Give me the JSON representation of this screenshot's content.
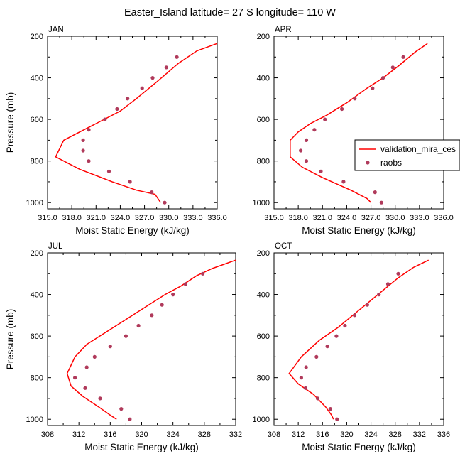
{
  "title": "Easter_Island  latitude= 27 S longitude= 110 W",
  "colors": {
    "model": "#ff0000",
    "obs": "#b03a5b"
  },
  "legend": {
    "items": [
      "validation_mira_ces",
      "raobs"
    ],
    "placement": "right, beside APR panel"
  },
  "chart_data": [
    {
      "type": "line",
      "panel": "JAN",
      "xlabel": "Moist Static Energy (kJ/kg)",
      "ylabel": "Pressure (mb)",
      "xlim": [
        315,
        336
      ],
      "ylim": [
        1030,
        200
      ],
      "xticks": [
        "315.0",
        "318.0",
        "321.0",
        "324.0",
        "327.0",
        "330.0",
        "333.0",
        "336.0"
      ],
      "yticks": [
        "200",
        "400",
        "600",
        "800",
        "1000"
      ],
      "series": [
        {
          "name": "validation_mira_ces",
          "style": "line",
          "x": [
            336.0,
            333.5,
            331.2,
            328.5,
            326.0,
            324.0,
            321.0,
            318.5,
            317.0,
            316.0,
            319.0,
            323.0,
            326.0,
            328.3,
            329.0
          ],
          "y": [
            235,
            270,
            330,
            420,
            500,
            560,
            620,
            670,
            700,
            780,
            840,
            900,
            940,
            960,
            1000
          ]
        },
        {
          "name": "raobs",
          "style": "markers",
          "x": [
            331.0,
            329.7,
            328.0,
            326.7,
            324.9,
            323.6,
            322.1,
            320.1,
            319.4,
            319.4,
            320.1,
            322.6,
            325.2,
            327.9,
            329.5
          ],
          "y": [
            300,
            350,
            400,
            450,
            500,
            550,
            600,
            650,
            700,
            750,
            800,
            850,
            900,
            950,
            1000
          ]
        }
      ]
    },
    {
      "type": "line",
      "panel": "APR",
      "xlabel": "Moist Static Energy (kJ/kg)",
      "ylabel": "",
      "xlim": [
        315,
        336
      ],
      "ylim": [
        1030,
        200
      ],
      "xticks": [
        "315.0",
        "318.0",
        "321.0",
        "324.0",
        "327.0",
        "330.0",
        "333.0",
        "336.0"
      ],
      "yticks": [
        "200",
        "400",
        "600",
        "800",
        "1000"
      ],
      "series": [
        {
          "name": "validation_mira_ces",
          "style": "line",
          "x": [
            334.0,
            332.5,
            330.5,
            328.5,
            326.5,
            324.0,
            321.5,
            319.5,
            318.0,
            317.0,
            317.0,
            318.5,
            321.0,
            324.5,
            326.5,
            327.0
          ],
          "y": [
            235,
            275,
            340,
            400,
            450,
            520,
            580,
            620,
            660,
            700,
            780,
            830,
            880,
            940,
            980,
            1000
          ]
        },
        {
          "name": "raobs",
          "style": "markers",
          "x": [
            331.0,
            329.7,
            328.5,
            327.2,
            325.0,
            323.4,
            321.3,
            320.0,
            319.0,
            318.3,
            319.0,
            320.8,
            323.6,
            327.5,
            328.3
          ],
          "y": [
            300,
            350,
            400,
            450,
            500,
            550,
            600,
            650,
            700,
            750,
            800,
            850,
            900,
            950,
            1000
          ]
        }
      ]
    },
    {
      "type": "line",
      "panel": "JUL",
      "xlabel": "Moist Static Energy (kJ/kg)",
      "ylabel": "Pressure (mb)",
      "xlim": [
        308,
        332
      ],
      "ylim": [
        1030,
        200
      ],
      "xticks": [
        "308",
        "312",
        "316",
        "320",
        "324",
        "328",
        "332"
      ],
      "yticks": [
        "200",
        "400",
        "600",
        "800",
        "1000"
      ],
      "series": [
        {
          "name": "validation_mira_ces",
          "style": "line",
          "x": [
            332.0,
            329.0,
            327.0,
            325.0,
            323.0,
            320.5,
            318.0,
            315.5,
            313.0,
            311.5,
            310.5,
            311.0,
            312.5,
            314.5,
            316.0,
            316.8
          ],
          "y": [
            235,
            275,
            310,
            360,
            400,
            460,
            520,
            580,
            640,
            700,
            780,
            840,
            890,
            940,
            980,
            1000
          ]
        },
        {
          "name": "raobs",
          "style": "markers",
          "x": [
            327.8,
            325.6,
            324.0,
            322.6,
            321.3,
            319.6,
            318.0,
            316.0,
            314.0,
            313.0,
            311.5,
            312.8,
            314.7,
            317.4,
            318.5
          ],
          "y": [
            300,
            350,
            400,
            450,
            500,
            550,
            600,
            650,
            700,
            750,
            800,
            850,
            900,
            950,
            1000
          ]
        }
      ]
    },
    {
      "type": "line",
      "panel": "OCT",
      "xlabel": "Moist Static Energy (kJ/kg)",
      "ylabel": "",
      "xlim": [
        308,
        336
      ],
      "ylim": [
        1030,
        200
      ],
      "xticks": [
        "308",
        "312",
        "316",
        "320",
        "324",
        "328",
        "332",
        "336"
      ],
      "yticks": [
        "200",
        "400",
        "600",
        "800",
        "1000"
      ],
      "series": [
        {
          "name": "validation_mira_ces",
          "style": "line",
          "x": [
            333.5,
            331.0,
            328.5,
            326.0,
            323.5,
            321.0,
            318.5,
            315.5,
            312.5,
            311.5,
            310.5,
            312.0,
            314.5,
            316.5,
            317.5,
            317.8
          ],
          "y": [
            235,
            270,
            320,
            380,
            440,
            500,
            560,
            620,
            700,
            740,
            780,
            830,
            880,
            940,
            980,
            1000
          ]
        },
        {
          "name": "raobs",
          "style": "markers",
          "x": [
            328.5,
            326.8,
            325.3,
            323.4,
            321.3,
            319.7,
            318.3,
            316.8,
            315.0,
            313.3,
            312.5,
            313.2,
            315.2,
            317.3,
            318.4
          ],
          "y": [
            300,
            350,
            400,
            450,
            500,
            550,
            600,
            650,
            700,
            750,
            800,
            850,
            900,
            950,
            1000
          ]
        }
      ]
    }
  ]
}
